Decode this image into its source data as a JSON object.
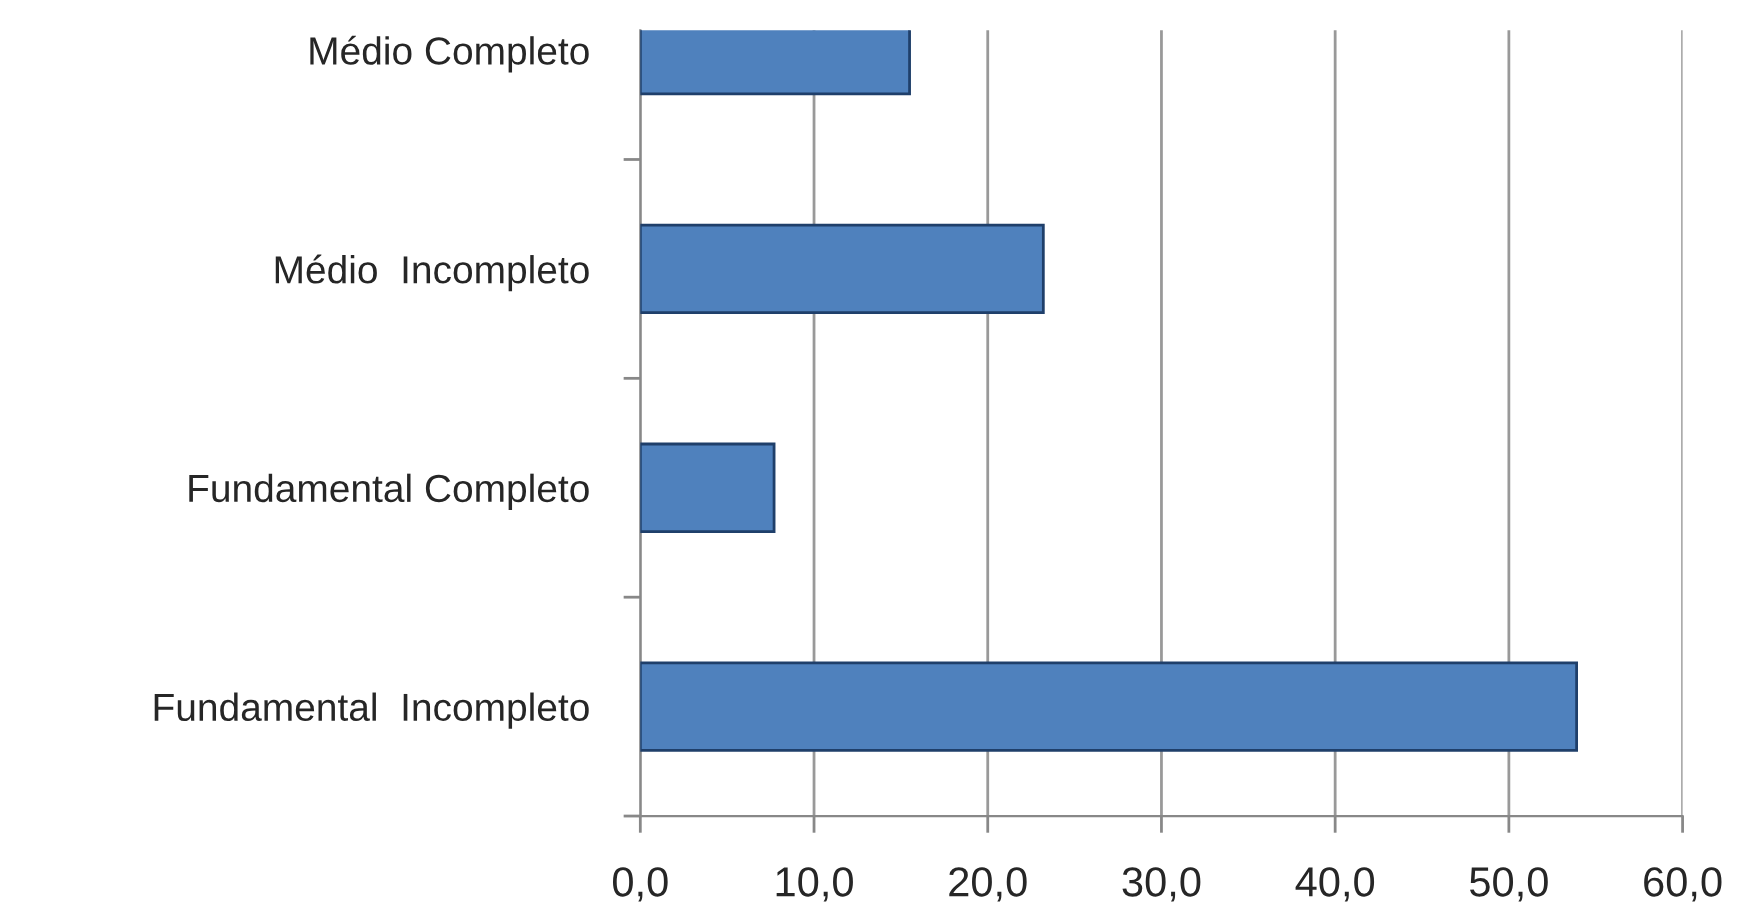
{
  "chart_data": {
    "type": "bar",
    "orientation": "horizontal",
    "categories": [
      "Médio Completo",
      "Médio  Incompleto",
      "Fundamental Completo",
      "Fundamental  Incompleto"
    ],
    "values": [
      15.5,
      23.2,
      7.7,
      53.9
    ],
    "color": "#4f81bd",
    "xlim": [
      0,
      60
    ],
    "xticks": [
      {
        "value": 0,
        "label": "0,0"
      },
      {
        "value": 10,
        "label": "10,0"
      },
      {
        "value": 20,
        "label": "20,0"
      },
      {
        "value": 30,
        "label": "30,0"
      },
      {
        "value": 40,
        "label": "40,0"
      },
      {
        "value": 50,
        "label": "50,0"
      },
      {
        "value": 60,
        "label": "60,0"
      }
    ],
    "grid": "x",
    "legend": false
  }
}
